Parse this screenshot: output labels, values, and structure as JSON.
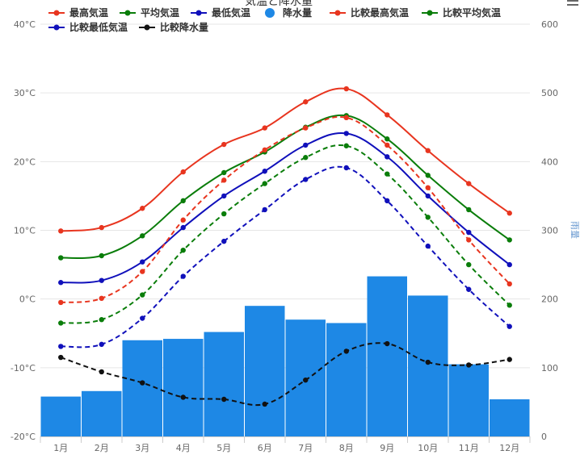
{
  "chart_data": {
    "type": "bar",
    "title": "気温と降水量",
    "categories": [
      "1月",
      "2月",
      "3月",
      "4月",
      "5月",
      "6月",
      "7月",
      "8月",
      "9月",
      "10月",
      "11月",
      "12月"
    ],
    "y_left": {
      "min": -20,
      "max": 40,
      "step": 10,
      "unit": "°C"
    },
    "y_right": {
      "min": 0,
      "max": 600,
      "step": 100,
      "label": "雨量"
    },
    "series": [
      {
        "name": "最高気温",
        "type": "line",
        "axis": "left",
        "color": "#e8351f",
        "dashed": false,
        "values": [
          9.9,
          10.4,
          13.2,
          18.5,
          22.5,
          24.9,
          28.7,
          30.6,
          26.8,
          21.6,
          16.8,
          12.5
        ]
      },
      {
        "name": "平均気温",
        "type": "line",
        "axis": "left",
        "color": "#0a7d0a",
        "dashed": false,
        "values": [
          6.0,
          6.3,
          9.2,
          14.3,
          18.4,
          21.4,
          25.0,
          26.7,
          23.3,
          18.0,
          13.0,
          8.6
        ]
      },
      {
        "name": "最低気温",
        "type": "line",
        "axis": "left",
        "color": "#1010bb",
        "dashed": false,
        "values": [
          2.4,
          2.7,
          5.4,
          10.4,
          15.0,
          18.6,
          22.4,
          24.1,
          20.7,
          15.0,
          9.7,
          5.0
        ]
      },
      {
        "name": "降水量",
        "type": "bar",
        "axis": "right",
        "color": "#1e88e5",
        "values": [
          58,
          66,
          140,
          142,
          152,
          190,
          170,
          165,
          233,
          205,
          105,
          54
        ]
      },
      {
        "name": "比較最高気温",
        "type": "line",
        "axis": "left",
        "color": "#e8351f",
        "dashed": true,
        "values": [
          -0.5,
          0.1,
          4.0,
          11.5,
          17.3,
          21.7,
          24.9,
          26.4,
          22.4,
          16.2,
          8.6,
          2.2
        ]
      },
      {
        "name": "比較平均気温",
        "type": "line",
        "axis": "left",
        "color": "#0a7d0a",
        "dashed": true,
        "values": [
          -3.5,
          -3.0,
          0.6,
          7.1,
          12.4,
          16.8,
          20.6,
          22.3,
          18.2,
          11.9,
          5.0,
          -0.9
        ]
      },
      {
        "name": "比較最低気温",
        "type": "line",
        "axis": "left",
        "color": "#1010bb",
        "dashed": true,
        "values": [
          -6.9,
          -6.6,
          -2.8,
          3.3,
          8.4,
          13.0,
          17.4,
          19.1,
          14.3,
          7.7,
          1.4,
          -4.0
        ]
      },
      {
        "name": "比較降水量",
        "type": "line",
        "axis": "right",
        "color": "#111111",
        "dashed": true,
        "values": [
          115,
          94,
          78,
          57,
          54,
          47,
          82,
          124,
          135,
          108,
          104,
          112
        ]
      }
    ],
    "legend_position": "top",
    "grid": true
  }
}
